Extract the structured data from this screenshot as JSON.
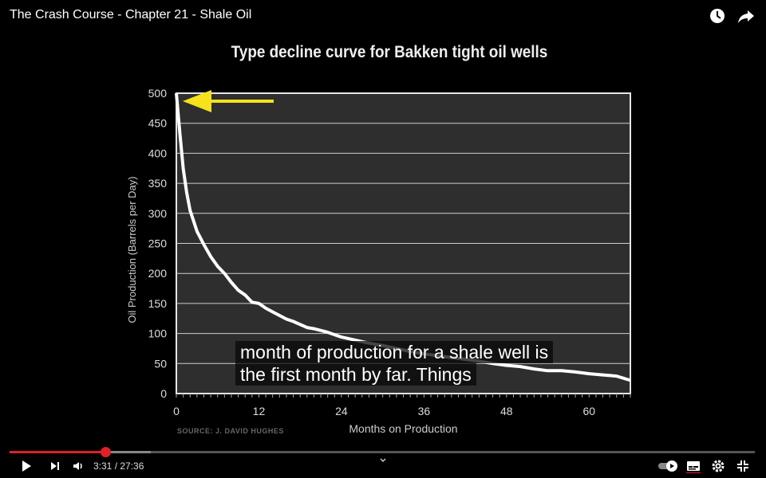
{
  "video": {
    "title": "The Crash Course - Chapter 21 - Shale Oil",
    "current_time": "3:31",
    "duration": "27:36",
    "time_display": "3:31 / 27:36",
    "progress": 0.128,
    "buffered": 0.19
  },
  "top_icons": [
    "watch-later-icon",
    "share-icon"
  ],
  "chart_data": {
    "type": "line",
    "title": "Type decline curve for Bakken tight oil wells",
    "xlabel": "Months on Production",
    "ylabel": "Oil Production (Barrels per Day)",
    "xlim": [
      0,
      66
    ],
    "ylim": [
      0,
      500
    ],
    "x_ticks": [
      "0",
      "12",
      "24",
      "36",
      "48",
      "60"
    ],
    "y_ticks": [
      "0",
      "50",
      "100",
      "150",
      "200",
      "250",
      "300",
      "350",
      "400",
      "450",
      "500"
    ],
    "grid": true,
    "source": "SOURCE: J. DAVID HUGHES",
    "series": [
      {
        "x": [
          0,
          0.5,
          1,
          1.5,
          2,
          3,
          4,
          5,
          6,
          7,
          8,
          9,
          10,
          11,
          12,
          13,
          14,
          15,
          16,
          17,
          18,
          19,
          20,
          22,
          24,
          26,
          28,
          30,
          32,
          34,
          36,
          38,
          40,
          42,
          44,
          46,
          48,
          50,
          52,
          54,
          56,
          58,
          60,
          62,
          64,
          66
        ],
        "y": [
          500,
          435,
          375,
          335,
          305,
          270,
          248,
          228,
          212,
          200,
          185,
          172,
          164,
          152,
          150,
          142,
          136,
          130,
          124,
          120,
          115,
          110,
          108,
          102,
          94,
          89,
          84,
          80,
          75,
          70,
          66,
          63,
          60,
          57,
          54,
          50,
          47,
          45,
          41,
          38,
          38,
          36,
          33,
          31,
          29,
          22
        ]
      }
    ],
    "annotations": [
      {
        "type": "arrow",
        "color": "#f5e11c",
        "points_to": [
          0,
          500
        ]
      }
    ]
  },
  "subtitles": {
    "line1": "month of production for a shale well is",
    "line2": "the first month by far. Things"
  },
  "controls": [
    "play-icon",
    "next-icon",
    "volume-icon",
    "autoplay-toggle",
    "captions-icon",
    "settings-icon",
    "exit-fullscreen-icon"
  ],
  "colors": {
    "accent": "#e0202a",
    "curve": "#ffffff",
    "arrow": "#f5e11c",
    "plot_bg": "#2e2e2e"
  }
}
